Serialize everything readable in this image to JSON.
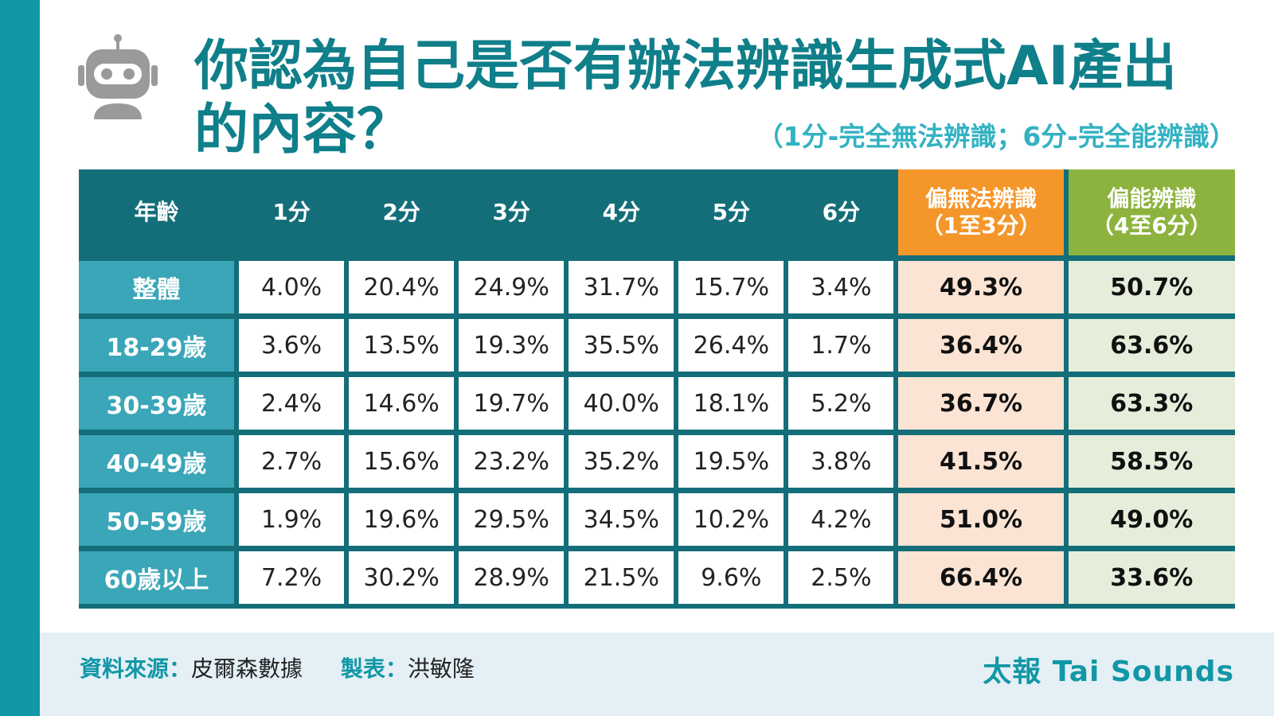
{
  "title": "你認為自己是否有辦法辨識生成式AI產出的內容？",
  "subtitle": "（1分-完全無法辨識；6分-完全能辨識）",
  "footer": {
    "source_label": "資料來源：",
    "source_value": "皮爾森數據",
    "maker_label": "製表：",
    "maker_value": "洪敏隆",
    "brand": "太報 Tai Sounds"
  },
  "colors": {
    "sidebar": "#1297a6",
    "header": "#136e79",
    "age_cell": "#3aa6b8",
    "negative_header": "#f4962a",
    "positive_header": "#8db33f",
    "negative_cell": "#fbe4d4",
    "positive_cell": "#e6eedb",
    "title": "#0f7f8a"
  },
  "icons": {
    "logo": "robot-icon"
  },
  "chart_data": {
    "type": "table",
    "title": "你認為自己是否有辦法辨識生成式AI產出的內容？",
    "subtitle": "（1分-完全無法辨識；6分-完全能辨識）",
    "columns": [
      {
        "line1": "年齡",
        "line2": ""
      },
      {
        "line1": "1分",
        "line2": ""
      },
      {
        "line1": "2分",
        "line2": ""
      },
      {
        "line1": "3分",
        "line2": ""
      },
      {
        "line1": "4分",
        "line2": ""
      },
      {
        "line1": "5分",
        "line2": ""
      },
      {
        "line1": "6分",
        "line2": ""
      },
      {
        "line1": "偏無法辨識",
        "line2": "（1至3分）"
      },
      {
        "line1": "偏能辨識",
        "line2": "（4至6分）"
      }
    ],
    "rows": [
      {
        "group": "整體",
        "values": [
          "4.0%",
          "20.4%",
          "24.9%",
          "31.7%",
          "15.7%",
          "3.4%",
          "49.3%",
          "50.7%"
        ]
      },
      {
        "group": "18-29歲",
        "values": [
          "3.6%",
          "13.5%",
          "19.3%",
          "35.5%",
          "26.4%",
          "1.7%",
          "36.4%",
          "63.6%"
        ]
      },
      {
        "group": "30-39歲",
        "values": [
          "2.4%",
          "14.6%",
          "19.7%",
          "40.0%",
          "18.1%",
          "5.2%",
          "36.7%",
          "63.3%"
        ]
      },
      {
        "group": "40-49歲",
        "values": [
          "2.7%",
          "15.6%",
          "23.2%",
          "35.2%",
          "19.5%",
          "3.8%",
          "41.5%",
          "58.5%"
        ]
      },
      {
        "group": "50-59歲",
        "values": [
          "1.9%",
          "19.6%",
          "29.5%",
          "34.5%",
          "10.2%",
          "4.2%",
          "51.0%",
          "49.0%"
        ]
      },
      {
        "group": "60歲以上",
        "values": [
          "7.2%",
          "30.2%",
          "28.9%",
          "21.5%",
          "9.6%",
          "2.5%",
          "66.4%",
          "33.6%"
        ]
      }
    ]
  }
}
